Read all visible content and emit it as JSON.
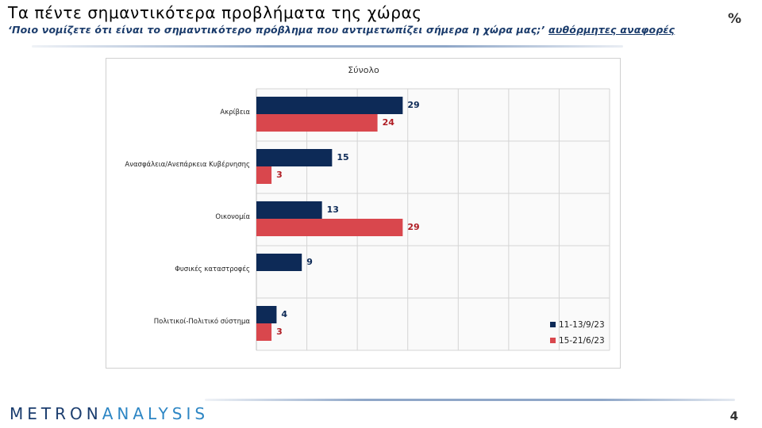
{
  "header": {
    "title": "Τα πέντε σημαντικότερα προβλήματα της χώρας",
    "subtitle": "‘Ποιο νομίζετε ότι είναι το σημαντικότερο πρόβλημα που αντιμετωπίζει σήμερα η χώρα μας;’",
    "subtitle_note": "αυθόρμητες αναφορές",
    "unit": "%"
  },
  "footer": {
    "logo_part1": "METRON",
    "logo_part2": "ANALYSIS",
    "page_number": "4"
  },
  "colors": {
    "series_1": "#0d2a57",
    "series_2": "#d9474d",
    "label_1": "#0d2a57",
    "label_2": "#b01e25",
    "grid": "#d4d4d4"
  },
  "chart_data": {
    "type": "bar",
    "orientation": "horizontal",
    "title": "Σύνολο",
    "categories": [
      "Ακρίβεια",
      "Ανασφάλεια/Ανεπάρκεια Κυβέρνησης",
      "Οικονομία",
      "Φυσικές καταστροφές",
      "Πολιτικοί-Πολιτικό σύστημα"
    ],
    "series": [
      {
        "name": "11-13/9/23",
        "values": [
          29,
          15,
          13,
          9,
          4
        ]
      },
      {
        "name": "15-21/6/23",
        "values": [
          24,
          3,
          29,
          null,
          3
        ]
      }
    ],
    "xlim": [
      0,
      70
    ],
    "grid": true,
    "legend_position": "bottom-right"
  }
}
